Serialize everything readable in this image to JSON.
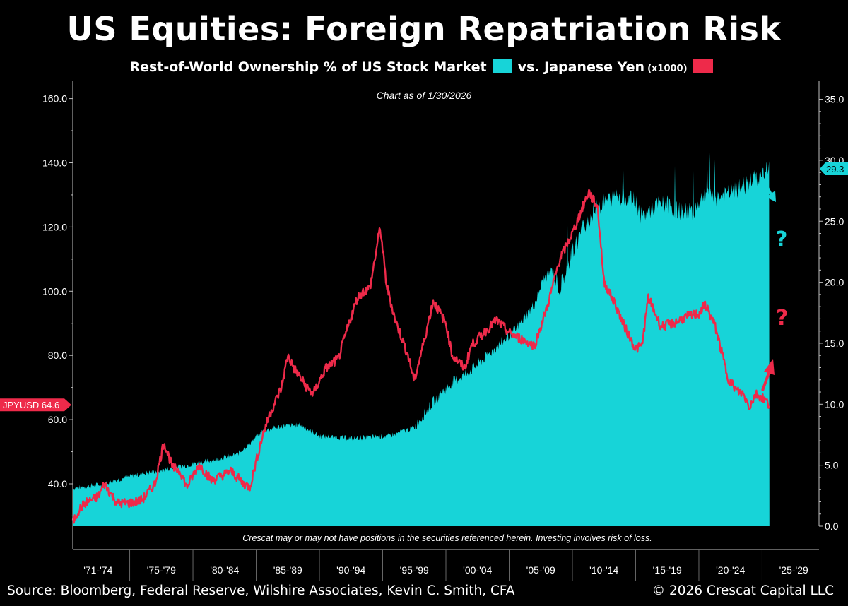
{
  "header": {
    "title": "US Equities: Foreign Repatriation Risk",
    "legend_series1_label": "Rest-of-World Ownership % of US Stock Market",
    "legend_series2_label": "vs. Japanese Yen",
    "legend_series2_suffix": "(x1000)",
    "as_of": "Chart as of 1/30/2026"
  },
  "colors": {
    "ownership": "#17d4d8",
    "yen": "#ee2a4a",
    "background": "#000000",
    "axis": "#bfbfbf"
  },
  "annotations": {
    "question_mark_cyan": "?",
    "question_mark_red": "?",
    "disclaimer": "Crescat may or may not have positions in the securities referenced herein. Investing involves risk of loss."
  },
  "footer": {
    "source": "Source: Bloomberg, Federal Reserve, Wilshire Associates, Kevin C. Smith, CFA",
    "copyright": "© 2026 Crescat Capital LLC"
  },
  "chart_data": {
    "type": "area",
    "x_categories": [
      "'71-'74",
      "'75-'79",
      "'80-'84",
      "'85-'89",
      "'90-'94",
      "'95-'99",
      "'00-'04",
      "'05-'09",
      "'10-'14",
      "'15-'19",
      "'20-'24",
      "'25-'29"
    ],
    "left_axis": {
      "ticks": [
        "40.0",
        "60.0",
        "80.0",
        "100.0",
        "120.0",
        "140.0",
        "160.0"
      ],
      "ylim": [
        27,
        162
      ]
    },
    "right_axis": {
      "ticks": [
        "0.0",
        "5.0",
        "10.0",
        "15.0",
        "20.0",
        "25.0",
        "30.0",
        "35.0"
      ],
      "ylim": [
        0,
        35
      ]
    },
    "grid": false,
    "series": [
      {
        "name": "Rest-of-World Ownership % of US Stock Market",
        "axis": "right",
        "last_value_label": "29.3",
        "x": [
          1971.0,
          1973.0,
          1974.5,
          1976.0,
          1978.0,
          1980.0,
          1982.0,
          1984.0,
          1985.0,
          1986.0,
          1987.5,
          1989.0,
          1990.5,
          1993.0,
          1996.0,
          1998.0,
          1999.5,
          2001.0,
          2002.5,
          2004.0,
          2006.0,
          2007.5,
          2008.2,
          2008.9,
          2009.5,
          2010.5,
          2011.5,
          2012.5,
          2014.0,
          2015.5,
          2016.0,
          2017.0,
          2018.0,
          2019.0,
          2020.0,
          2021.0,
          2022.0,
          2023.0,
          2024.0,
          2025.0,
          2025.5,
          2026.08
        ],
        "y": [
          3.1,
          3.4,
          3.8,
          4.2,
          4.6,
          5.0,
          5.4,
          5.9,
          6.8,
          7.8,
          8.2,
          8.3,
          7.4,
          7.2,
          7.4,
          8.1,
          10.2,
          11.8,
          12.8,
          14.2,
          16.1,
          18.2,
          20.2,
          21.0,
          19.4,
          22.5,
          24.8,
          26.2,
          27.2,
          26.6,
          25.3,
          26.3,
          26.4,
          25.8,
          25.8,
          27.4,
          26.9,
          27.3,
          27.9,
          28.5,
          28.8,
          29.3
        ]
      },
      {
        "name": "vs. Japanese Yen",
        "axis": "left",
        "last_value_label": "JPYUSD 64.6",
        "x": [
          1971.0,
          1971.5,
          1972.0,
          1973.0,
          1973.5,
          1974.5,
          1975.5,
          1976.5,
          1977.5,
          1978.2,
          1978.9,
          1979.5,
          1980.0,
          1981.0,
          1982.0,
          1983.0,
          1983.5,
          1984.5,
          1985.0,
          1986.0,
          1986.5,
          1987.5,
          1988.0,
          1988.5,
          1989.5,
          1990.0,
          1991.0,
          1992.0,
          1993.0,
          1993.5,
          1994.0,
          1994.5,
          1995.3,
          1995.8,
          1996.5,
          1997.5,
          1998.0,
          1998.8,
          1999.5,
          2000.5,
          2001.0,
          2002.0,
          2002.5,
          2003.5,
          2004.5,
          2005.5,
          2006.5,
          2007.5,
          2008.5,
          2009.5,
          2010.5,
          2011.5,
          2011.8,
          2012.5,
          2013.0,
          2014.0,
          2014.5,
          2015.5,
          2016.0,
          2016.5,
          2017.5,
          2018.5,
          2019.5,
          2020.5,
          2021.0,
          2021.8,
          2022.8,
          2023.5,
          2024.0,
          2024.5,
          2025.0,
          2025.5,
          2026.08
        ],
        "y": [
          28.0,
          32.0,
          34.0,
          36.0,
          40.0,
          34.0,
          34.0,
          35.0,
          40.0,
          53.0,
          45.0,
          44.0,
          39.0,
          46.0,
          41.0,
          43.0,
          44.0,
          40.0,
          39.0,
          55.0,
          61.0,
          70.0,
          80.0,
          76.0,
          70.0,
          68.0,
          76.0,
          79.0,
          92.0,
          98.0,
          100.0,
          101.0,
          120.0,
          102.0,
          91.0,
          80.0,
          72.0,
          85.0,
          97.0,
          90.0,
          80.0,
          76.0,
          83.0,
          87.0,
          91.0,
          87.0,
          85.0,
          83.0,
          95.0,
          110.0,
          118.0,
          128.0,
          131.0,
          126.0,
          103.0,
          95.0,
          90.0,
          82.0,
          83.0,
          98.0,
          89.0,
          90.0,
          92.0,
          93.0,
          96.0,
          89.0,
          73.0,
          69.0,
          68.0,
          64.0,
          68.0,
          67.0,
          64.6
        ]
      }
    ]
  }
}
